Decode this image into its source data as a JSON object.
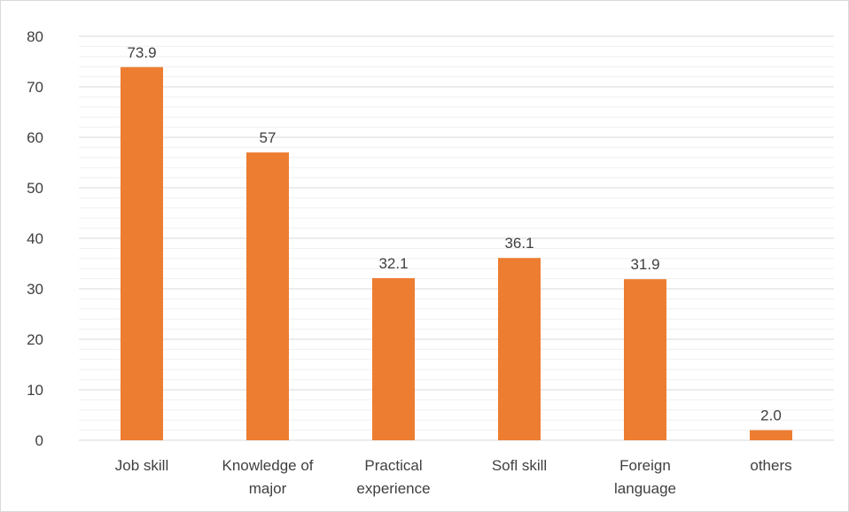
{
  "chart_data": {
    "type": "bar",
    "categories": [
      [
        "Job skill"
      ],
      [
        "Knowledge of",
        "major"
      ],
      [
        "Practical",
        "experience"
      ],
      [
        "Sofl skill"
      ],
      [
        "Foreign",
        "language"
      ],
      [
        "others"
      ]
    ],
    "values": [
      73.9,
      57,
      32.1,
      36.1,
      31.9,
      2.0
    ],
    "data_labels": [
      "73.9",
      "57",
      "32.1",
      "36.1",
      "31.9",
      "2.0"
    ],
    "ylim": [
      0,
      80
    ],
    "y_ticks": [
      0,
      10,
      20,
      30,
      40,
      50,
      60,
      70,
      80
    ],
    "minor_gridlines": true,
    "title": "",
    "xlabel": "",
    "ylabel": "",
    "bar_color": "#ed7d31",
    "gridline_color": "#d9d9d9",
    "legend": "none"
  }
}
